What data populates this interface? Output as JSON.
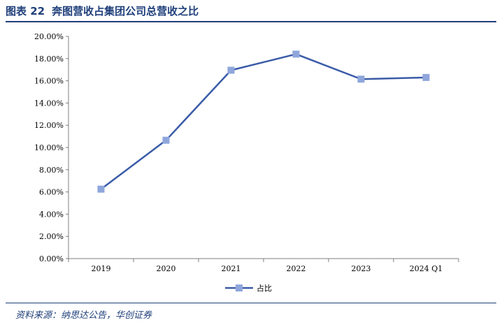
{
  "header": {
    "figure_no": "图表 22",
    "title": "奔图营收占集团公司总营收之比"
  },
  "footer": {
    "source": "资料来源：纳思达公告，华创证券"
  },
  "chart_data": {
    "type": "line",
    "title": "",
    "xlabel": "",
    "ylabel": "",
    "categories": [
      "2019",
      "2020",
      "2021",
      "2022",
      "2023",
      "2024 Q1"
    ],
    "series": [
      {
        "name": "占比",
        "values": [
          6.25,
          10.65,
          16.95,
          18.4,
          16.15,
          16.3
        ]
      }
    ],
    "ylim": [
      0,
      20
    ],
    "y_ticks": [
      "0.00%",
      "2.00%",
      "4.00%",
      "6.00%",
      "8.00%",
      "10.00%",
      "12.00%",
      "14.00%",
      "16.00%",
      "18.00%",
      "20.00%"
    ],
    "grid": false,
    "legend": "bottom",
    "colors": {
      "line": "#3a5ba8",
      "marker": "#8fa6dc",
      "axis": "#7f7f7f"
    }
  }
}
